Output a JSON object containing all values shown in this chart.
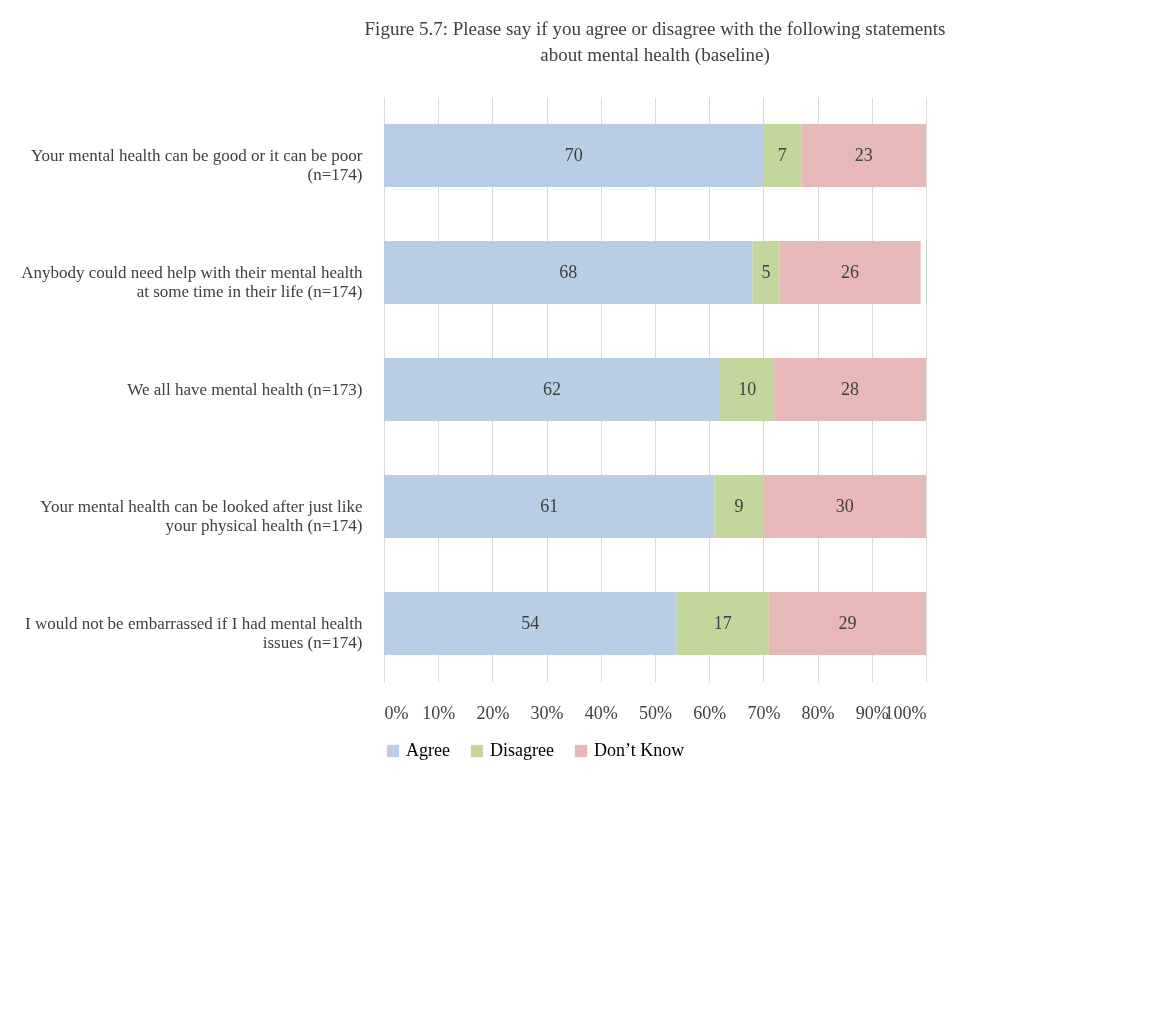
{
  "chart_data": {
    "type": "bar",
    "orientation": "horizontal",
    "stacked": true,
    "title": "Figure 5.7:  Please say if you agree or disagree with the following statements about mental health (baseline)",
    "categories": [
      "Your mental health can be good or it can be poor (n=174)",
      "Anybody could need help with their mental health at some time in their life (n=174)",
      "We all have mental health (n=173)",
      "Your mental health can be looked after just like your physical health (n=174)",
      "I would not be embarrassed if I had mental health issues (n=174)"
    ],
    "series": [
      {
        "name": "Agree",
        "color": "#b9cde5",
        "values": [
          70,
          68,
          62,
          61,
          54
        ]
      },
      {
        "name": "Disagree",
        "color": "#c3d69b",
        "values": [
          7,
          5,
          10,
          9,
          17
        ]
      },
      {
        "name": "Don’t Know",
        "color": "#e6b9b8",
        "values": [
          23,
          26,
          28,
          30,
          29
        ]
      }
    ],
    "xlim": [
      0,
      100
    ],
    "xticks": [
      {
        "value": 0,
        "label": "0%"
      },
      {
        "value": 10,
        "label": "10%"
      },
      {
        "value": 20,
        "label": "20%"
      },
      {
        "value": 30,
        "label": "30%"
      },
      {
        "value": 40,
        "label": "40%"
      },
      {
        "value": 50,
        "label": "50%"
      },
      {
        "value": 60,
        "label": "60%"
      },
      {
        "value": 70,
        "label": "70%"
      },
      {
        "value": 80,
        "label": "80%"
      },
      {
        "value": 90,
        "label": "90%"
      },
      {
        "value": 100,
        "label": "100%"
      }
    ],
    "grid": "x",
    "legend": "bottom",
    "data_labels": true
  }
}
